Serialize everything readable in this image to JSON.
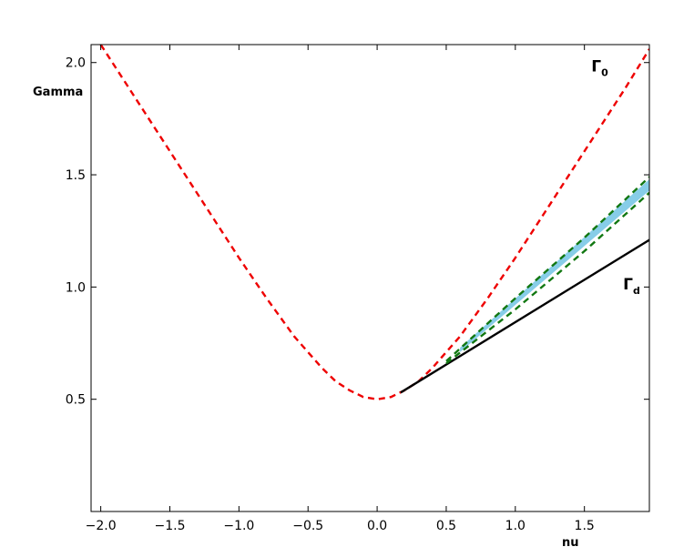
{
  "chart_data": {
    "type": "line",
    "xlabel": "nu",
    "ylabel": "Gamma",
    "xlim": [
      -2.07,
      1.97
    ],
    "ylim": [
      0.0,
      2.08
    ],
    "grid": false,
    "xticks": [
      -2.0,
      -1.5,
      -1.0,
      -0.5,
      0.0,
      0.5,
      1.0,
      1.5
    ],
    "xtick_labels": [
      "−2.0",
      "−1.5",
      "−1.0",
      "−0.5",
      "0.0",
      "0.5",
      "1.0",
      "1.5"
    ],
    "yticks": [
      0.5,
      1.0,
      1.5,
      2.0
    ],
    "ytick_labels": [
      "0.5",
      "1.0",
      "1.5",
      "2.0"
    ],
    "annotations": [
      {
        "base": "Γ",
        "sub": "0",
        "x": 1.55,
        "y": 1.96
      },
      {
        "base": "Γ",
        "sub": "d",
        "x": 1.78,
        "y": 0.99
      }
    ],
    "series": [
      {
        "name": "",
        "style": "dashed",
        "color": "#ee0000",
        "x": [
          -2.0,
          -1.8,
          -1.6,
          -1.4,
          -1.2,
          -1.0,
          -0.8,
          -0.6,
          -0.4,
          -0.3,
          -0.2,
          -0.1,
          0.0,
          0.1,
          0.2,
          0.3,
          0.4,
          0.6,
          0.8,
          1.0,
          1.2,
          1.4,
          1.6,
          1.8,
          1.97
        ],
        "y": [
          2.08,
          1.89,
          1.7,
          1.51,
          1.32,
          1.13,
          0.95,
          0.78,
          0.64,
          0.58,
          0.54,
          0.51,
          0.5,
          0.51,
          0.54,
          0.58,
          0.64,
          0.78,
          0.95,
          1.13,
          1.32,
          1.51,
          1.7,
          1.89,
          2.06
        ]
      },
      {
        "name": "",
        "style": "solid",
        "color": "#000000",
        "x": [
          0.17,
          1.97
        ],
        "y": [
          0.53,
          1.21
        ]
      },
      {
        "name": "",
        "style": "dashed",
        "color": "#117711",
        "x": [
          0.5,
          1.0,
          1.5,
          1.97
        ],
        "y": [
          0.67,
          0.95,
          1.22,
          1.49
        ]
      },
      {
        "name": "",
        "style": "dashed",
        "color": "#117711",
        "x": [
          0.5,
          1.0,
          1.5,
          1.97
        ],
        "y": [
          0.66,
          0.9,
          1.16,
          1.42
        ]
      }
    ],
    "band": {
      "color": "#87cde8",
      "x": [
        0.6,
        1.97
      ],
      "lower": [
        0.71,
        1.43
      ],
      "upper": [
        0.73,
        1.48
      ]
    }
  }
}
